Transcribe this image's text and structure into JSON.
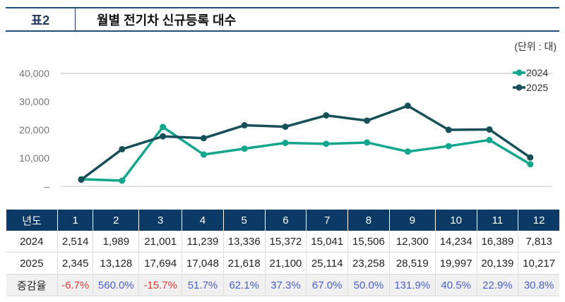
{
  "header": {
    "number": "표2",
    "title": "월별 전기차 신규등록 대수"
  },
  "unit": "(단위 : 대)",
  "colors": {
    "2024": "#12a68c",
    "2025": "#164f57",
    "header_bg": "#0c3a66",
    "negative": "#e53935",
    "positive": "#4a5fcf"
  },
  "chart_data": {
    "type": "line",
    "categories": [
      "1",
      "2",
      "3",
      "4",
      "5",
      "6",
      "7",
      "8",
      "9",
      "10",
      "11",
      "12"
    ],
    "series": [
      {
        "name": "2024",
        "values": [
          2514,
          1989,
          21001,
          11239,
          13336,
          15372,
          15041,
          15506,
          12300,
          14234,
          16389,
          7813
        ]
      },
      {
        "name": "2025",
        "values": [
          2345,
          13128,
          17694,
          17048,
          21618,
          21100,
          25114,
          23258,
          28519,
          19997,
          20139,
          10217
        ]
      }
    ],
    "yticks": [
      "–",
      "10,000",
      "20,000",
      "30,000",
      "40,000"
    ],
    "ylim": [
      0,
      40000
    ],
    "legend": "top-right"
  },
  "table": {
    "header": [
      "년도",
      "1",
      "2",
      "3",
      "4",
      "5",
      "6",
      "7",
      "8",
      "9",
      "10",
      "11",
      "12"
    ],
    "rows": [
      [
        "2024",
        "2,514",
        "1,989",
        "21,001",
        "11,239",
        "13,336",
        "15,372",
        "15,041",
        "15,506",
        "12,300",
        "14,234",
        "16,389",
        "7,813"
      ],
      [
        "2025",
        "2,345",
        "13,128",
        "17,694",
        "17,048",
        "21,618",
        "21,100",
        "25,114",
        "23,258",
        "28,519",
        "19,997",
        "20,139",
        "10,217"
      ],
      [
        "증감율",
        "-6.7%",
        "560.0%",
        "-15.7%",
        "51.7%",
        "62.1%",
        "37.3%",
        "67.0%",
        "50.0%",
        "131.9%",
        "40.5%",
        "22.9%",
        "30.8%"
      ]
    ]
  }
}
